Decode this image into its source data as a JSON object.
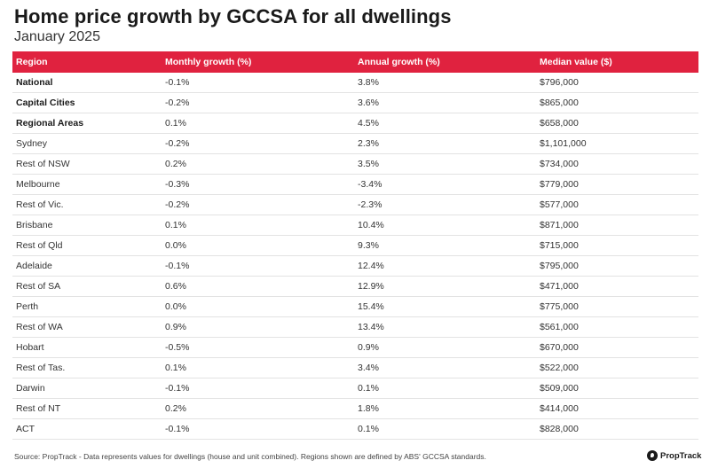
{
  "title": "Home price growth by GCCSA for all dwellings",
  "subtitle": "January 2025",
  "footer": "Source: PropTrack - Data represents values for dwellings (house and unit combined). Regions shown are defined by ABS' GCCSA standards.",
  "brand": "PropTrack",
  "colors": {
    "header_bg": "#e0223f",
    "header_text": "#ffffff"
  },
  "chart_data": {
    "type": "table",
    "columns": [
      "Region",
      "Monthly growth (%)",
      "Annual growth (%)",
      "Median value ($)"
    ],
    "rows": [
      {
        "region": "National",
        "monthly": "-0.1%",
        "annual": "3.8%",
        "median": "$796,000",
        "bold": true
      },
      {
        "region": "Capital Cities",
        "monthly": "-0.2%",
        "annual": "3.6%",
        "median": "$865,000",
        "bold": true
      },
      {
        "region": "Regional Areas",
        "monthly": "0.1%",
        "annual": "4.5%",
        "median": "$658,000",
        "bold": true
      },
      {
        "region": "Sydney",
        "monthly": "-0.2%",
        "annual": "2.3%",
        "median": "$1,101,000",
        "bold": false
      },
      {
        "region": "Rest of NSW",
        "monthly": "0.2%",
        "annual": "3.5%",
        "median": "$734,000",
        "bold": false
      },
      {
        "region": "Melbourne",
        "monthly": "-0.3%",
        "annual": "-3.4%",
        "median": "$779,000",
        "bold": false
      },
      {
        "region": "Rest of Vic.",
        "monthly": "-0.2%",
        "annual": "-2.3%",
        "median": "$577,000",
        "bold": false
      },
      {
        "region": "Brisbane",
        "monthly": "0.1%",
        "annual": "10.4%",
        "median": "$871,000",
        "bold": false
      },
      {
        "region": "Rest of Qld",
        "monthly": "0.0%",
        "annual": "9.3%",
        "median": "$715,000",
        "bold": false
      },
      {
        "region": "Adelaide",
        "monthly": "-0.1%",
        "annual": "12.4%",
        "median": "$795,000",
        "bold": false
      },
      {
        "region": "Rest of SA",
        "monthly": "0.6%",
        "annual": "12.9%",
        "median": "$471,000",
        "bold": false
      },
      {
        "region": "Perth",
        "monthly": "0.0%",
        "annual": "15.4%",
        "median": "$775,000",
        "bold": false
      },
      {
        "region": "Rest of WA",
        "monthly": "0.9%",
        "annual": "13.4%",
        "median": "$561,000",
        "bold": false
      },
      {
        "region": "Hobart",
        "monthly": "-0.5%",
        "annual": "0.9%",
        "median": "$670,000",
        "bold": false
      },
      {
        "region": "Rest of Tas.",
        "monthly": "0.1%",
        "annual": "3.4%",
        "median": "$522,000",
        "bold": false
      },
      {
        "region": "Darwin",
        "monthly": "-0.1%",
        "annual": "0.1%",
        "median": "$509,000",
        "bold": false
      },
      {
        "region": "Rest of NT",
        "monthly": "0.2%",
        "annual": "1.8%",
        "median": "$414,000",
        "bold": false
      },
      {
        "region": "ACT",
        "monthly": "-0.1%",
        "annual": "0.1%",
        "median": "$828,000",
        "bold": false
      }
    ]
  }
}
